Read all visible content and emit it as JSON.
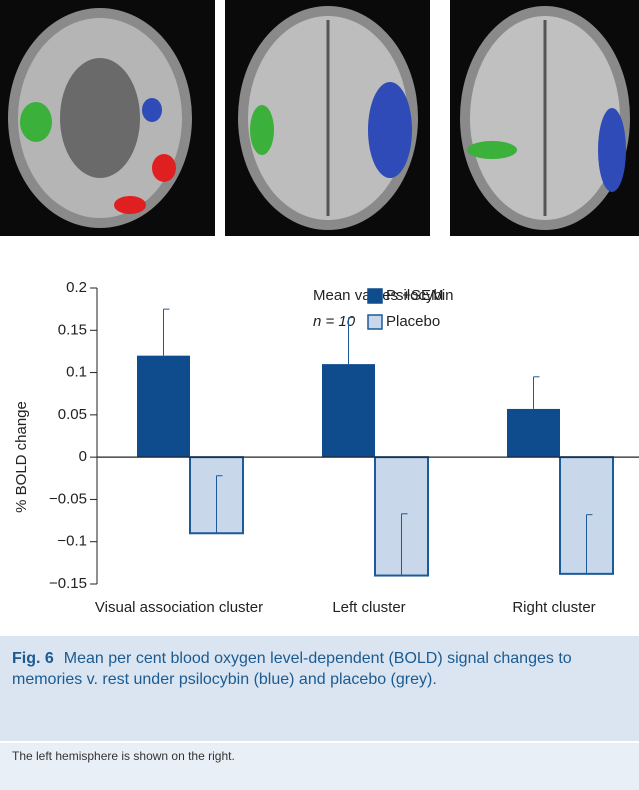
{
  "chart_data": {
    "type": "bar",
    "y_label": "% BOLD change",
    "categories": [
      "Visual association cluster",
      "Left cluster",
      "Right cluster"
    ],
    "series": [
      {
        "name": "Psilocybin",
        "color": "#0f4c8d",
        "values": [
          0.12,
          0.11,
          0.057
        ],
        "errors": [
          0.055,
          0.055,
          0.038
        ]
      },
      {
        "name": "Placebo",
        "color": "#c9d7eb",
        "values": [
          -0.09,
          -0.14,
          -0.138
        ],
        "errors": [
          0.068,
          0.073,
          0.07
        ]
      }
    ],
    "ylim": [
      -0.15,
      0.2
    ],
    "yticks": [
      {
        "value": -0.15,
        "label": "−0.15"
      },
      {
        "value": -0.1,
        "label": "−0.1"
      },
      {
        "value": -0.05,
        "label": "−0.05"
      },
      0,
      0.05,
      0.1,
      0.15,
      0.2
    ],
    "annotations": [
      "Mean values +SEM",
      "n = 10"
    ]
  },
  "caption": {
    "label": "Fig. 6",
    "text": "Mean per cent blood oxygen level-dependent (BOLD) signal changes to memories v. rest under psilocybin (blue) and placebo (grey)."
  },
  "note": "The left hemisphere is shown on the right."
}
